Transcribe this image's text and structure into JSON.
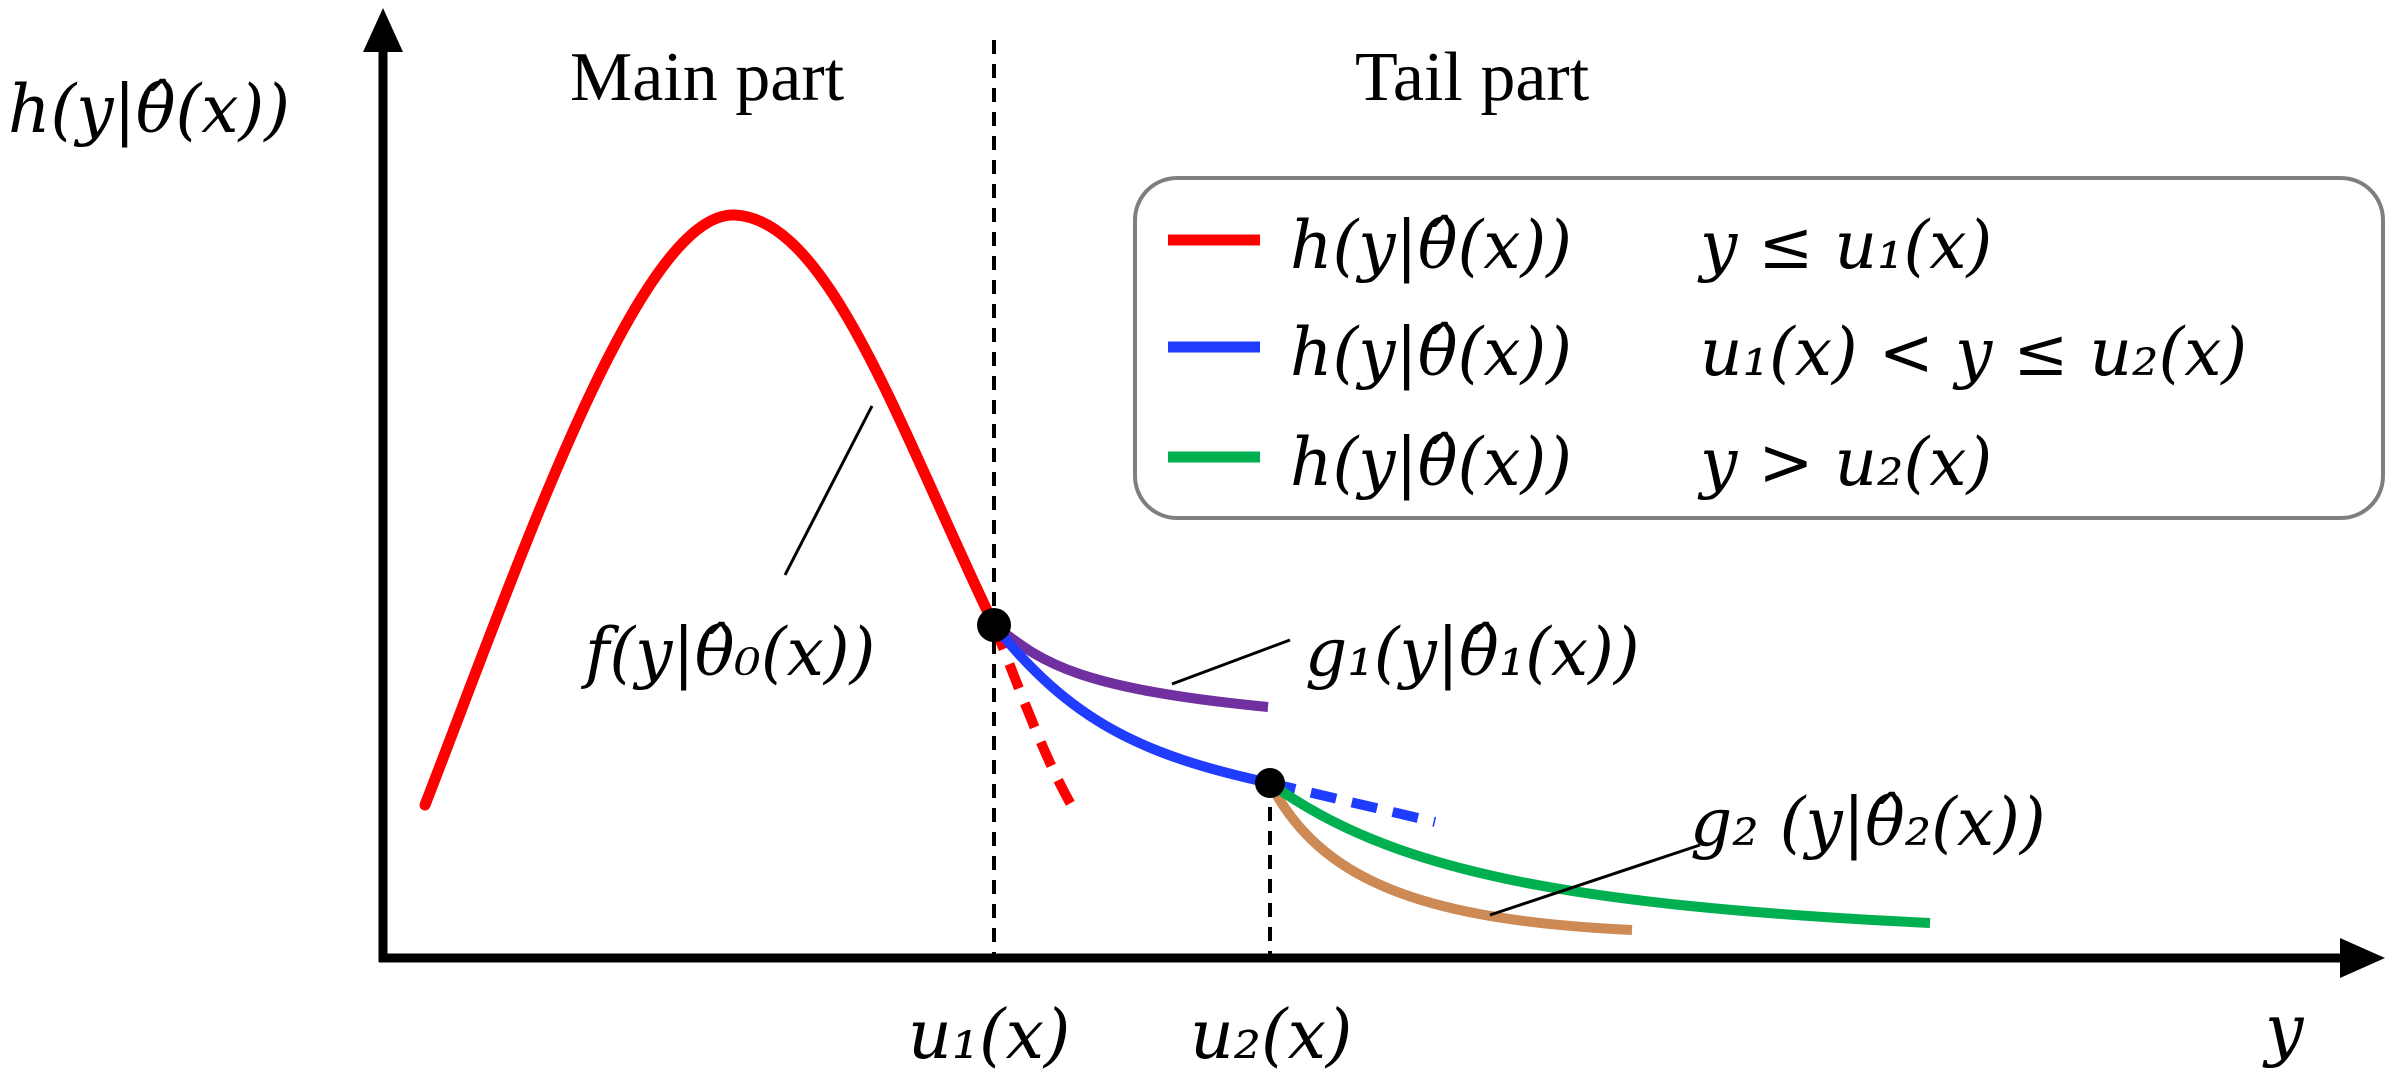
{
  "axes": {
    "y_label": "h(y|θ̂(x))",
    "x_label": "y"
  },
  "regions": {
    "main": "Main part",
    "tail": "Tail part"
  },
  "thresholds": {
    "u1": "u₁(x)",
    "u2": "u₂(x)"
  },
  "legend": {
    "items": [
      {
        "func": "h(y|θ̂(x))",
        "cond": "y ≤ u₁(x)",
        "color": "#ff0000"
      },
      {
        "func": "h(y|θ̂(x))",
        "cond": "u₁(x) < y ≤ u₂(x)",
        "color": "#1f3cff"
      },
      {
        "func": "h(y|θ̂(x))",
        "cond": "y > u₂(x)",
        "color": "#00b050"
      }
    ]
  },
  "annotations": {
    "f": "f(y|θ̂₀(x))",
    "g1": "g₁(y|θ̂₁(x))",
    "g2": "g₂ (y|θ̂₂(x))"
  },
  "colors": {
    "main_density": "#ff0000",
    "g1_fit": "#7030a0",
    "h_mid": "#1f3cff",
    "h_tail": "#00b050",
    "g2_fit": "#cd8a55",
    "axis": "#000000"
  }
}
